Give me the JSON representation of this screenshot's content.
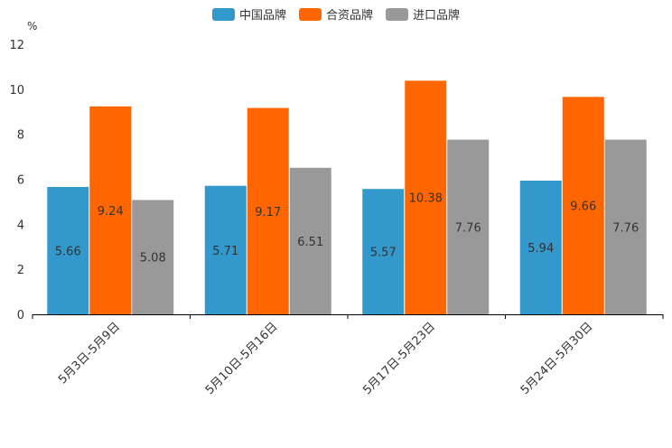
{
  "chart_data": {
    "type": "bar",
    "unit_label": "%",
    "categories": [
      "5月3日-5月9日",
      "5月10日-5月16日",
      "5月17日-5月23日",
      "5月24日-5月30日"
    ],
    "series": [
      {
        "name": "中国品牌",
        "color": "#3399cc",
        "values": [
          5.66,
          5.71,
          5.57,
          5.94
        ]
      },
      {
        "name": "合资品牌",
        "color": "#ff6600",
        "values": [
          9.24,
          9.17,
          10.38,
          9.66
        ]
      },
      {
        "name": "进口品牌",
        "color": "#999999",
        "values": [
          5.08,
          6.51,
          7.76,
          7.76
        ]
      }
    ],
    "ylim": [
      0,
      12
    ],
    "yticks": [
      "0",
      "2",
      "4",
      "6",
      "8",
      "10",
      "12"
    ],
    "value_labels": [
      [
        "5.66",
        "5.71",
        "5.57",
        "5.94"
      ],
      [
        "9.24",
        "9.17",
        "10.38",
        "9.66"
      ],
      [
        "5.08",
        "6.51",
        "7.76",
        "7.76"
      ]
    ],
    "legend_position": "top-center",
    "grid": false
  }
}
